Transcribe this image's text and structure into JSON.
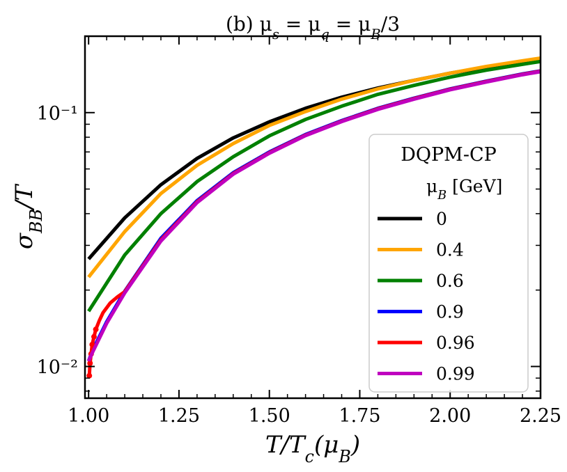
{
  "chart_data": {
    "type": "line",
    "title": "(b) μ_s = μ_q = μ_B/3",
    "xlabel": "T/T_c(μ_B)",
    "ylabel": "σ_BB/T",
    "xscale": "linear",
    "yscale": "log",
    "xlim": [
      0.99,
      2.25
    ],
    "ylim": [
      0.0075,
      0.2
    ],
    "xticks": [
      1.0,
      1.25,
      1.5,
      1.75,
      2.0,
      2.25
    ],
    "xtick_labels": [
      "1.00",
      "1.25",
      "1.50",
      "1.75",
      "2.00",
      "2.25"
    ],
    "yticks": [
      0.01,
      0.1
    ],
    "ytick_labels": [
      "10⁻²",
      "10⁻¹"
    ],
    "grid": false,
    "legend": {
      "title": "DQPM-CP",
      "subtitle": "μ_B [GeV]",
      "position": "lower-right"
    },
    "series": [
      {
        "name": "0",
        "color": "#000000",
        "x": [
          1.0,
          1.1,
          1.2,
          1.3,
          1.4,
          1.5,
          1.6,
          1.7,
          1.8,
          1.9,
          2.0,
          2.1,
          2.2,
          2.25
        ],
        "y": [
          0.0265,
          0.0385,
          0.052,
          0.066,
          0.0795,
          0.092,
          0.104,
          0.115,
          0.125,
          0.134,
          0.143,
          0.151,
          0.159,
          0.163
        ]
      },
      {
        "name": "0.4",
        "color": "#ffa500",
        "x": [
          1.0,
          1.1,
          1.2,
          1.3,
          1.4,
          1.5,
          1.6,
          1.7,
          1.8,
          1.9,
          2.0,
          2.1,
          2.2,
          2.25
        ],
        "y": [
          0.0225,
          0.034,
          0.048,
          0.062,
          0.0755,
          0.089,
          0.101,
          0.113,
          0.124,
          0.134,
          0.143,
          0.152,
          0.16,
          0.164
        ]
      },
      {
        "name": "0.6",
        "color": "#008000",
        "x": [
          1.0,
          1.1,
          1.2,
          1.3,
          1.4,
          1.5,
          1.6,
          1.7,
          1.8,
          1.9,
          2.0,
          2.1,
          2.2,
          2.25
        ],
        "y": [
          0.0165,
          0.0275,
          0.04,
          0.0535,
          0.067,
          0.081,
          0.094,
          0.106,
          0.118,
          0.128,
          0.138,
          0.147,
          0.155,
          0.159
        ]
      },
      {
        "name": "0.9",
        "color": "#0000ff",
        "x": [
          1.0,
          1.01,
          1.05,
          1.1,
          1.2,
          1.3,
          1.4,
          1.5,
          1.6,
          1.7,
          1.8,
          1.9,
          2.0,
          2.1,
          2.2,
          2.25
        ],
        "y": [
          0.0105,
          0.0115,
          0.015,
          0.0198,
          0.032,
          0.045,
          0.058,
          0.07,
          0.082,
          0.093,
          0.104,
          0.114,
          0.124,
          0.133,
          0.142,
          0.146
        ]
      },
      {
        "name": "0.96",
        "color": "#ff0000",
        "style": "dotted-end",
        "x": [
          1.002,
          1.004,
          1.007,
          1.01,
          1.015,
          1.02,
          1.03,
          1.04,
          1.06,
          1.08,
          1.1,
          1.2,
          1.3,
          1.4,
          1.5,
          1.6,
          1.7,
          1.8,
          1.9,
          2.0,
          2.1,
          2.2,
          2.25
        ],
        "y": [
          0.0092,
          0.0103,
          0.0112,
          0.0122,
          0.0131,
          0.014,
          0.0152,
          0.0163,
          0.0178,
          0.0188,
          0.0197,
          0.0315,
          0.0445,
          0.0575,
          0.0695,
          0.0815,
          0.0925,
          0.1035,
          0.1135,
          0.1235,
          0.1325,
          0.1415,
          0.1455
        ]
      },
      {
        "name": "0.99",
        "color": "#bf00bf",
        "x": [
          1.0,
          1.01,
          1.05,
          1.1,
          1.2,
          1.3,
          1.4,
          1.5,
          1.6,
          1.7,
          1.8,
          1.9,
          2.0,
          2.1,
          2.2,
          2.25
        ],
        "y": [
          0.0105,
          0.0113,
          0.0148,
          0.0195,
          0.0312,
          0.0442,
          0.0572,
          0.0692,
          0.0812,
          0.0922,
          0.103,
          0.113,
          0.123,
          0.132,
          0.141,
          0.145
        ]
      }
    ]
  }
}
